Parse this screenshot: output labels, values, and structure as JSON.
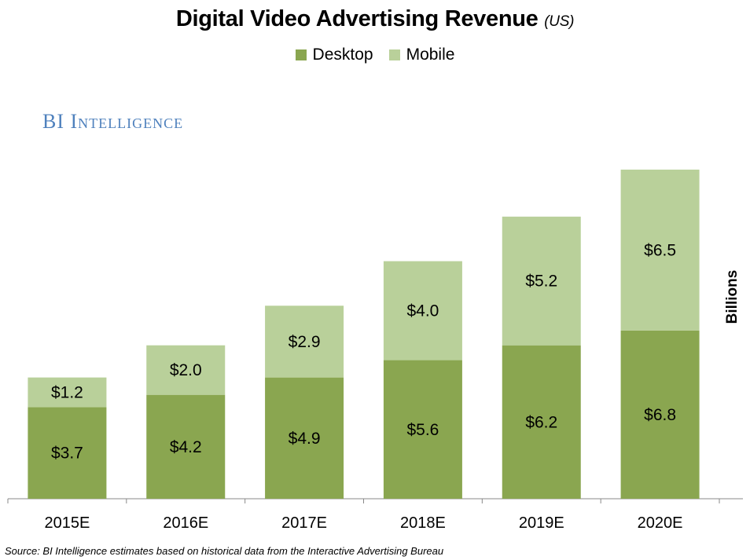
{
  "chart_data": {
    "type": "bar",
    "stacked": true,
    "title": "Digital Video Advertising Revenue",
    "title_suffix": "(US)",
    "ylabel": "Billions",
    "categories": [
      "2015E",
      "2016E",
      "2017E",
      "2018E",
      "2019E",
      "2020E"
    ],
    "series": [
      {
        "name": "Desktop",
        "color": "#8aa650",
        "values": [
          3.7,
          4.2,
          4.9,
          5.6,
          6.2,
          6.8
        ],
        "labels": [
          "$3.7",
          "$4.2",
          "$4.9",
          "$5.6",
          "$6.2",
          "$6.8"
        ]
      },
      {
        "name": "Mobile",
        "color": "#b9d09a",
        "values": [
          1.2,
          2.0,
          2.9,
          4.0,
          5.2,
          6.5
        ],
        "labels": [
          "$1.2",
          "$2.0",
          "$2.9",
          "$4.0",
          "$5.2",
          "$6.5"
        ]
      }
    ],
    "ylim": [
      0,
      14.6
    ],
    "grid": false,
    "legend_position": "top-center"
  },
  "brand": "BI Intelligence",
  "source": "Source: BI Intelligence estimates based on historical data from the Interactive Advertising Bureau"
}
